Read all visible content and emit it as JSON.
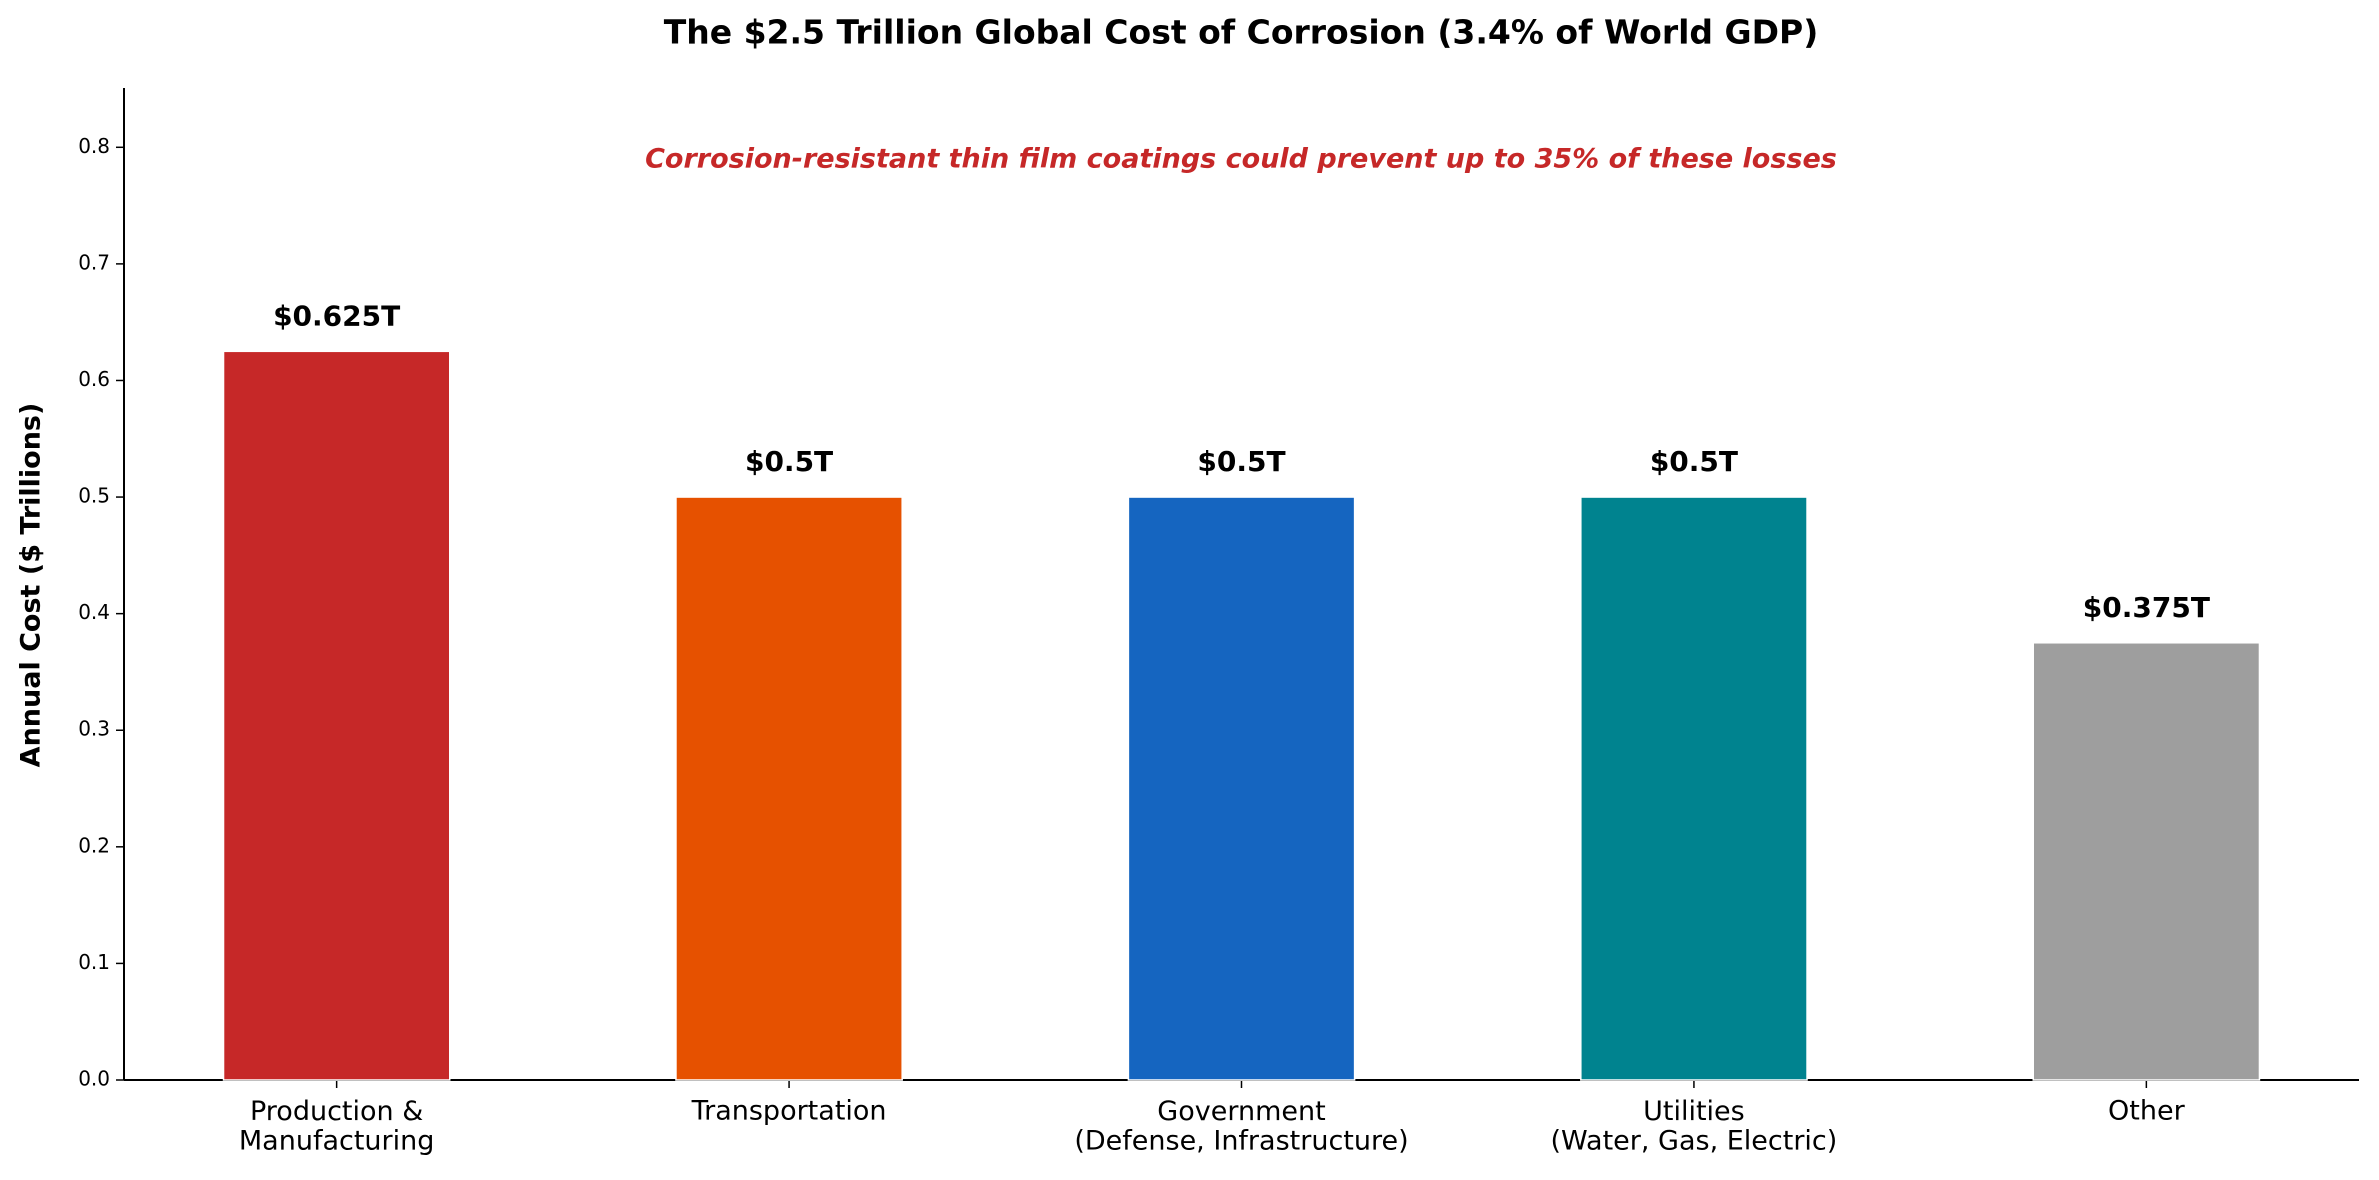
{
  "chart_data": {
    "type": "bar",
    "title": "The $2.5 Trillion Global Cost of Corrosion (3.4% of World GDP)",
    "annotation": "Corrosion-resistant thin film coatings could prevent up to 35% of these losses",
    "y_label": "Annual Cost ($ Trillions)",
    "categories": [
      "Production &\nManufacturing",
      "Transportation",
      "Government\n(Defense, Infrastructure)",
      "Utilities\n(Water, Gas, Electric)",
      "Other"
    ],
    "values": [
      0.625,
      0.5,
      0.5,
      0.5,
      0.375
    ],
    "value_labels": [
      "$0.625T",
      "$0.5T",
      "$0.5T",
      "$0.5T",
      "$0.375T"
    ],
    "colors": [
      "#c62828",
      "#e65100",
      "#1565c0",
      "#00838f",
      "#9e9e9e"
    ],
    "ylim": [
      0,
      0.85
    ],
    "yticks": [
      {
        "value": 0,
        "label": "0.0"
      },
      0.1,
      0.2,
      0.3,
      0.4,
      0.5,
      0.6,
      0.7,
      0.8
    ],
    "grid": false
  }
}
